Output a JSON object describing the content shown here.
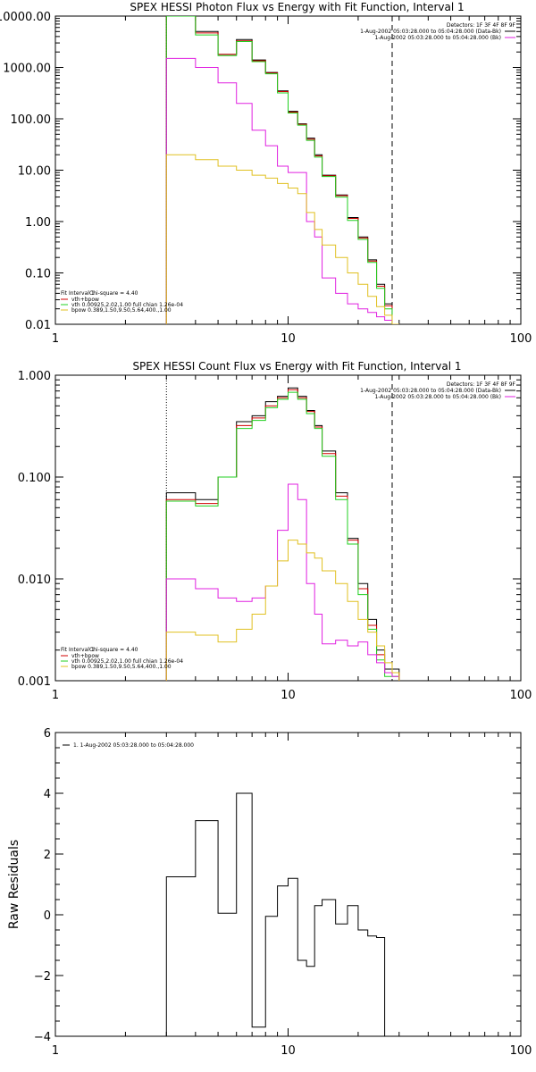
{
  "colors": {
    "background": "#ffffff",
    "data": "#000000",
    "total_model": "#d00000",
    "vth": "#20d020",
    "vth_component_2": "#e020e0",
    "bpow": "#e0c020"
  },
  "chart_data": [
    {
      "type": "line",
      "step": true,
      "title": "SPEX HESSI Photon Flux vs Energy with Fit Function, Interval 1",
      "xlabel": "",
      "ylabel": "",
      "xscale": "log",
      "yscale": "log",
      "xlim": [
        1,
        100
      ],
      "ylim": [
        0.01,
        10000
      ],
      "x_ticks": [
        "1",
        "10",
        "100"
      ],
      "y_ticks": [
        "0.01",
        "0.10",
        "1.00",
        "10.00",
        "100.00",
        "1000.00",
        "10000.00"
      ],
      "edges": [
        3,
        4,
        5,
        6,
        7,
        8,
        9,
        10,
        11,
        12,
        13,
        14,
        16,
        18,
        20,
        22,
        24,
        26,
        28,
        30
      ],
      "series": [
        {
          "key": "data",
          "values": [
            10000,
            5000,
            1800,
            3500,
            1400,
            800,
            350,
            140,
            80,
            42,
            20,
            8,
            3.3,
            1.2,
            0.5,
            0.18,
            0.06,
            0.025,
            0.01
          ]
        },
        {
          "key": "total_model",
          "values": [
            10000,
            4700,
            1800,
            3300,
            1350,
            780,
            340,
            135,
            78,
            40,
            19,
            7.8,
            3.2,
            1.15,
            0.48,
            0.17,
            0.055,
            0.023,
            0.009
          ]
        },
        {
          "key": "vth",
          "values": [
            10000,
            4300,
            1700,
            3200,
            1300,
            750,
            320,
            130,
            75,
            38,
            18,
            7.5,
            3.0,
            1.05,
            0.45,
            0.16,
            0.05,
            0.02,
            0.008
          ]
        },
        {
          "key": "vth_component_2",
          "values": [
            1500,
            1000,
            500,
            200,
            60,
            30,
            12,
            9,
            9,
            1,
            0.5,
            0.08,
            0.04,
            0.025,
            0.02,
            0.017,
            0.014,
            0.012,
            0.01
          ]
        },
        {
          "key": "bpow",
          "values": [
            20,
            16,
            12,
            10,
            8,
            7,
            5.5,
            4.5,
            3.5,
            1.5,
            0.7,
            0.35,
            0.2,
            0.1,
            0.06,
            0.035,
            0.022,
            0.015,
            0.01
          ]
        }
      ],
      "vlines": [
        {
          "x": 3,
          "style": "dotted"
        },
        {
          "x": 28,
          "style": "dashed"
        }
      ],
      "header_lines": [
        "Detectors: 1F 3F 4F 8F 9F",
        "1-Aug-2002 05:03:28.000 to 05:04:28.000 (Data-Bk)",
        "1-Aug-2002 05:03:28.000 to 05:04:28.000 (Bk)"
      ],
      "fit_label": "Fit Interval 1",
      "chi_square": "Chi-square = 4.40",
      "legend": [
        {
          "key": "total_model",
          "label": "vth+bpow"
        },
        {
          "key": "vth",
          "label": "vth 0.00925,2.02,1.00  full chian 1.26e-04"
        },
        {
          "key": "bpow",
          "label": "bpow 0.389,1.50,9.50,5.64,400.,1.00"
        }
      ]
    },
    {
      "type": "line",
      "step": true,
      "title": "SPEX HESSI Count Flux vs Energy with Fit Function, Interval 1",
      "xlabel": "",
      "ylabel": "",
      "xscale": "log",
      "yscale": "log",
      "xlim": [
        1,
        100
      ],
      "ylim": [
        0.001,
        1
      ],
      "x_ticks": [
        "1",
        "10",
        "100"
      ],
      "y_ticks": [
        "0.001",
        "0.010",
        "0.100",
        "1.000"
      ],
      "edges": [
        3,
        4,
        5,
        6,
        7,
        8,
        9,
        10,
        11,
        12,
        13,
        14,
        16,
        18,
        20,
        22,
        24,
        26,
        28,
        30
      ],
      "series": [
        {
          "key": "data",
          "values": [
            0.07,
            0.06,
            0.1,
            0.35,
            0.4,
            0.55,
            0.62,
            0.75,
            0.62,
            0.45,
            0.32,
            0.18,
            0.07,
            0.025,
            0.009,
            0.004,
            0.002,
            0.0013,
            0.0013
          ]
        },
        {
          "key": "total_model",
          "values": [
            0.06,
            0.055,
            0.1,
            0.32,
            0.38,
            0.5,
            0.6,
            0.72,
            0.6,
            0.44,
            0.31,
            0.17,
            0.065,
            0.024,
            0.008,
            0.0035,
            0.0018,
            0.0012,
            0.0012
          ]
        },
        {
          "key": "vth",
          "values": [
            0.058,
            0.052,
            0.1,
            0.3,
            0.36,
            0.48,
            0.58,
            0.68,
            0.58,
            0.42,
            0.3,
            0.16,
            0.06,
            0.022,
            0.007,
            0.0032,
            0.0016,
            0.0011,
            0.0011
          ]
        },
        {
          "key": "vth_component_2",
          "values": [
            0.01,
            0.008,
            0.0065,
            0.006,
            0.0065,
            0.0085,
            0.03,
            0.085,
            0.06,
            0.009,
            0.0045,
            0.0023,
            0.0025,
            0.0022,
            0.0024,
            0.0018,
            0.0015,
            0.0012,
            0.0011
          ]
        },
        {
          "key": "bpow",
          "values": [
            0.003,
            0.0028,
            0.0024,
            0.0032,
            0.0045,
            0.0085,
            0.015,
            0.024,
            0.022,
            0.018,
            0.016,
            0.012,
            0.009,
            0.006,
            0.004,
            0.003,
            0.0022,
            0.0015,
            0.0012
          ]
        }
      ],
      "vlines": [
        {
          "x": 3,
          "style": "dotted"
        },
        {
          "x": 28,
          "style": "dashed"
        }
      ],
      "header_lines": [
        "Detectors: 1F 3F 4F 8F 9F",
        "1-Aug-2002 05:03:28.000 to 05:04:28.000 (Data-Bk)",
        "1-Aug-2002 05:03:28.000 to 05:04:28.000 (Bk)"
      ],
      "fit_label": "Fit Interval 1",
      "chi_square": "Chi-square = 4.40",
      "legend": [
        {
          "key": "total_model",
          "label": "vth+bpow"
        },
        {
          "key": "vth",
          "label": "vth 0.00925,2.02,1.00  full chian 1.26e-04"
        },
        {
          "key": "bpow",
          "label": "bpow 0.389,1.50,9.50,5.64,400.,1.00"
        }
      ]
    },
    {
      "type": "line",
      "step": true,
      "title": "",
      "xlabel": "",
      "ylabel": "Raw Residuals",
      "xscale": "log",
      "yscale": "linear",
      "xlim": [
        1,
        100
      ],
      "ylim": [
        -4,
        6
      ],
      "x_ticks": [
        "1",
        "10",
        "100"
      ],
      "y_ticks": [
        "-4",
        "-2",
        "0",
        "2",
        "4",
        "6"
      ],
      "edges": [
        3,
        4,
        5,
        6,
        7,
        8,
        9,
        10,
        11,
        12,
        13,
        14,
        16,
        18,
        20,
        22,
        24,
        26,
        28
      ],
      "series": [
        {
          "key": "data",
          "values": [
            1.25,
            3.1,
            0.05,
            4.0,
            -3.7,
            -0.05,
            0.95,
            1.2,
            -1.5,
            -1.7,
            0.3,
            0.5,
            -0.3,
            0.3,
            -0.5,
            -0.7,
            -0.75,
            -4
          ]
        }
      ],
      "legend": [
        {
          "key": "data",
          "label": "1. 1-Aug-2002 05:03:28.000 to 05:04:28.000"
        }
      ]
    }
  ]
}
